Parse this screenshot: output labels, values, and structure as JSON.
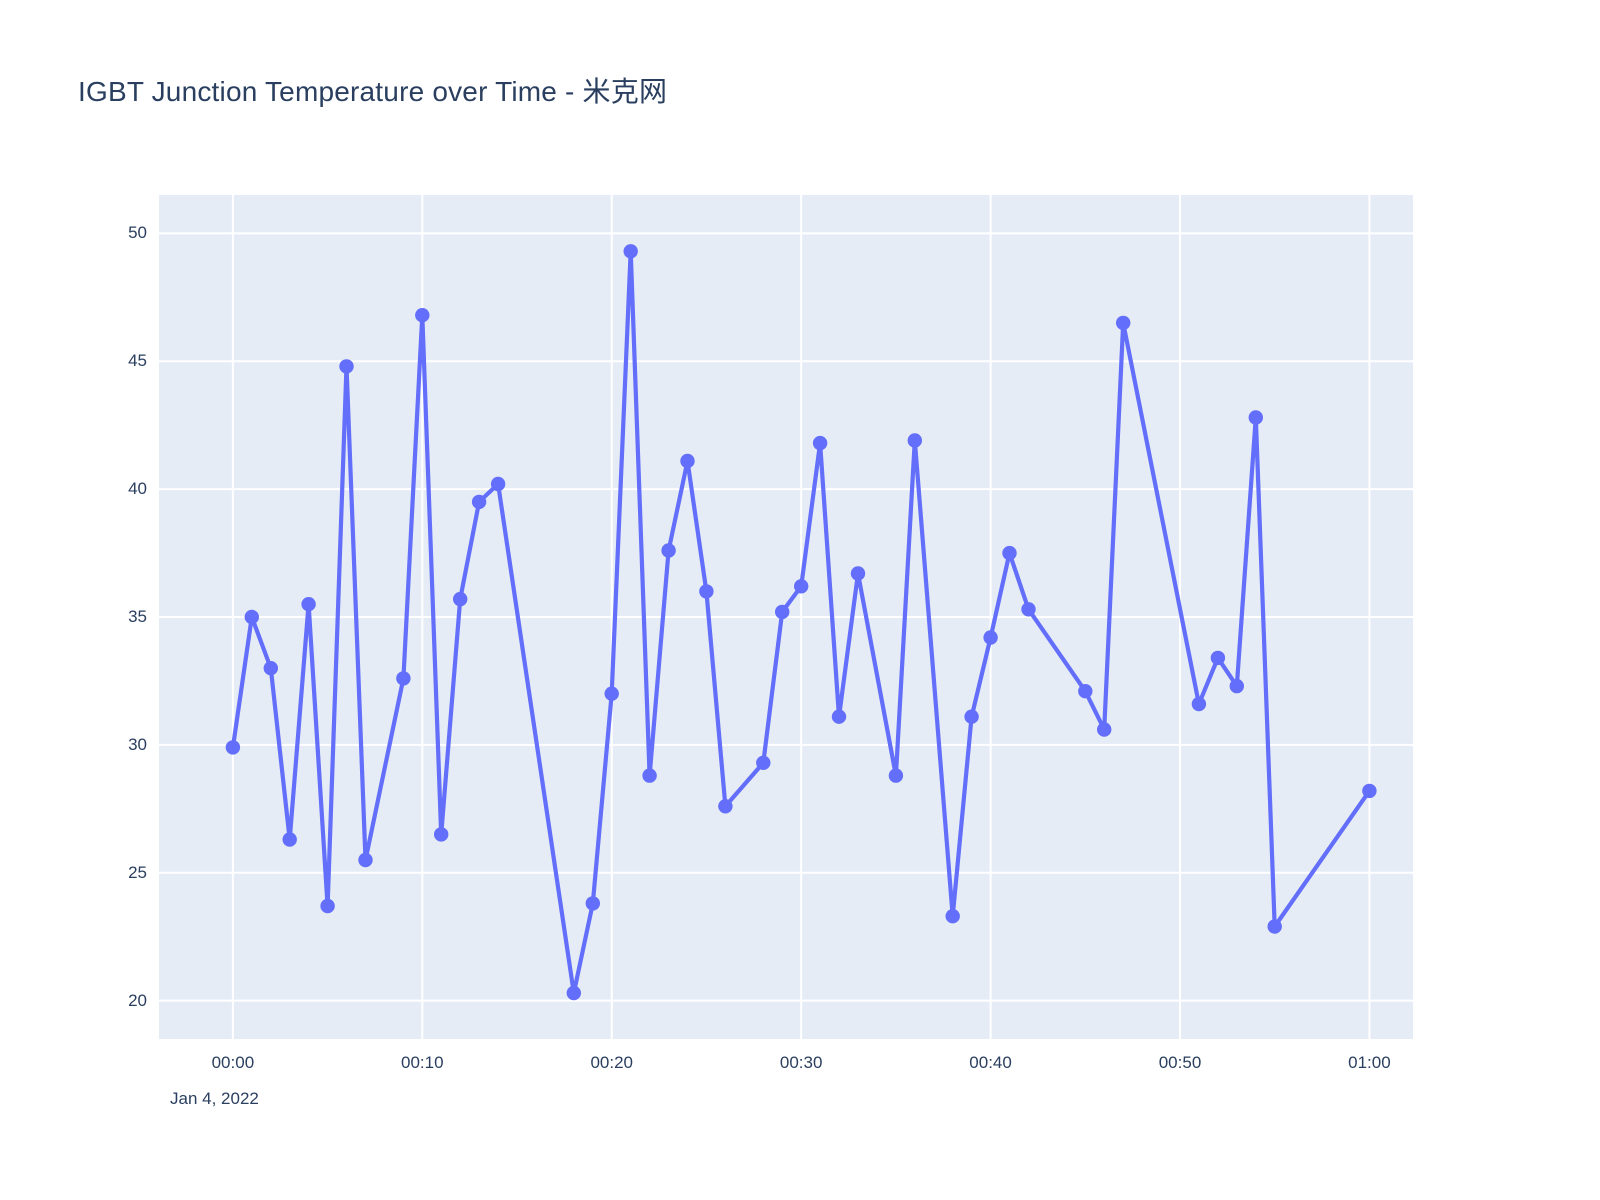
{
  "header": {
    "title": "IGBT Junction Temperature over Time - 米克网"
  },
  "style": {
    "paper_bg": "#ffffff",
    "plot_bg": "#E5ECF6",
    "grid_color": "#ffffff",
    "text_color": "#2a3f5f",
    "line_color": "#636EFA",
    "marker_color": "#636EFA"
  },
  "chart_data": {
    "type": "line",
    "mode": "lines+markers",
    "title": "IGBT Junction Temperature over Time - 米克网",
    "xlabel": "",
    "ylabel": "",
    "grid": true,
    "legend_shown": false,
    "x_date_label": "Jan 4, 2022",
    "x_tick_labels": [
      "00:00",
      "00:10",
      "00:20",
      "00:30",
      "00:40",
      "00:50",
      "01:00"
    ],
    "x_tick_minutes": [
      0,
      10,
      20,
      30,
      40,
      50,
      60
    ],
    "y_ticks": [
      20,
      25,
      30,
      35,
      40,
      45,
      50
    ],
    "x_range_minutes": [
      -3.9,
      62.3
    ],
    "y_range": [
      18.5,
      51.5
    ],
    "series": [
      {
        "name": "IGBT junction temperature",
        "times": [
          "00:00",
          "00:01",
          "00:02",
          "00:03",
          "00:04",
          "00:05",
          "00:06",
          "00:07",
          "00:09",
          "00:10",
          "00:11",
          "00:12",
          "00:13",
          "00:14",
          "00:18",
          "00:19",
          "00:20",
          "00:21",
          "00:22",
          "00:23",
          "00:24",
          "00:25",
          "00:26",
          "00:28",
          "00:29",
          "00:30",
          "00:31",
          "00:32",
          "00:33",
          "00:35",
          "00:36",
          "00:38",
          "00:39",
          "00:40",
          "00:41",
          "00:42",
          "00:45",
          "00:46",
          "00:47",
          "00:51",
          "00:52",
          "00:53",
          "00:54",
          "00:55",
          "01:00"
        ],
        "minutes": [
          0,
          1,
          2,
          3,
          4,
          5,
          6,
          7,
          9,
          10,
          11,
          12,
          13,
          14,
          18,
          19,
          20,
          21,
          22,
          23,
          24,
          25,
          26,
          28,
          29,
          30,
          31,
          32,
          33,
          35,
          36,
          38,
          39,
          40,
          41,
          42,
          45,
          46,
          47,
          51,
          52,
          53,
          54,
          55,
          60
        ],
        "values": [
          29.9,
          35.0,
          33.0,
          26.3,
          35.5,
          23.7,
          44.8,
          25.5,
          32.6,
          46.8,
          26.5,
          35.7,
          39.5,
          40.2,
          20.3,
          23.8,
          32.0,
          49.3,
          28.8,
          37.6,
          41.1,
          36.0,
          27.6,
          29.3,
          35.2,
          36.2,
          41.8,
          31.1,
          36.7,
          28.8,
          41.9,
          23.3,
          31.1,
          34.2,
          37.5,
          35.3,
          32.1,
          30.6,
          46.5,
          31.6,
          33.4,
          32.3,
          42.8,
          22.9,
          28.2
        ]
      }
    ]
  }
}
